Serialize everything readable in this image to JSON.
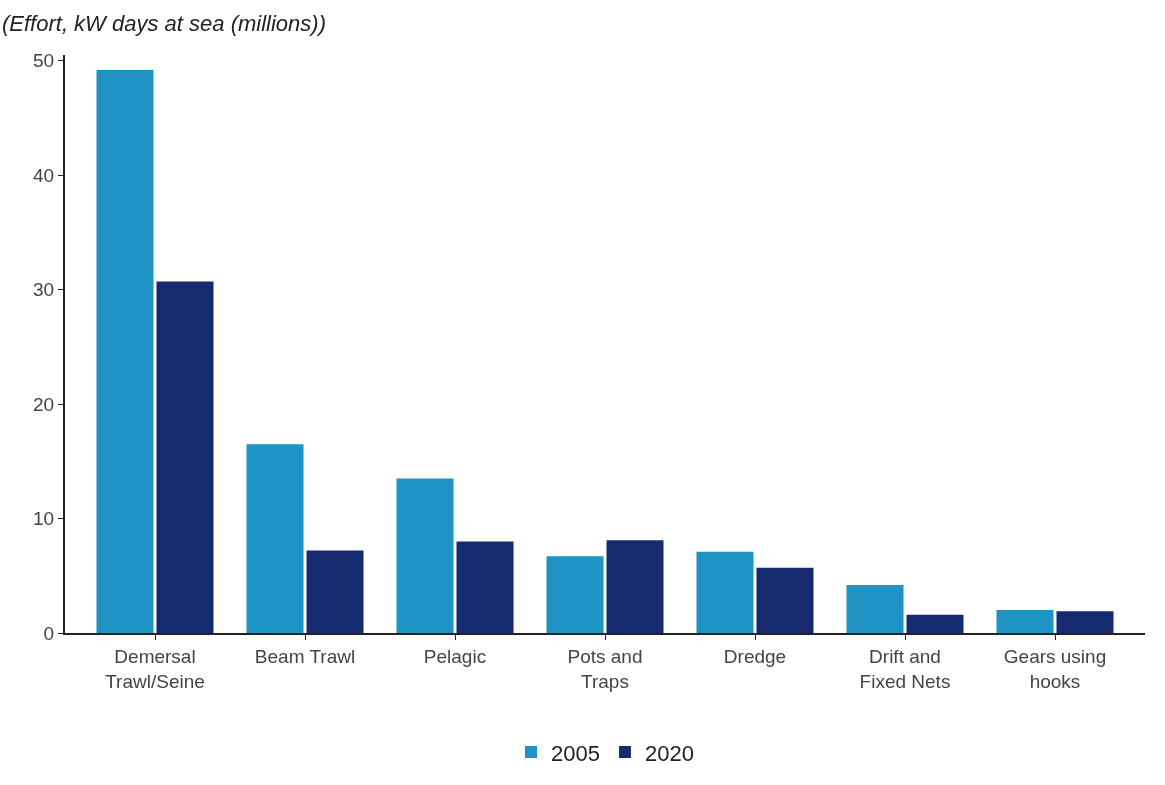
{
  "chart_data": {
    "type": "bar",
    "ylabel": "(Effort, kW days at sea (millions))",
    "categories": [
      "Demersal\nTrawl/Seine",
      "Beam Trawl",
      "Pelagic",
      "Pots and\nTraps",
      "Dredge",
      "Drift and\nFixed Nets",
      "Gears using\nhooks"
    ],
    "series": [
      {
        "name": "2005",
        "color": "#1f93c4",
        "values": [
          49.2,
          16.5,
          13.5,
          6.7,
          7.1,
          4.2,
          2.0
        ]
      },
      {
        "name": "2020",
        "color": "#162a70",
        "values": [
          30.7,
          7.2,
          8.0,
          8.1,
          5.7,
          1.6,
          1.9
        ]
      }
    ],
    "ylim": [
      0,
      50.5
    ],
    "yticks": [
      0,
      10,
      20,
      30,
      40,
      50
    ],
    "legend": "bottom"
  }
}
